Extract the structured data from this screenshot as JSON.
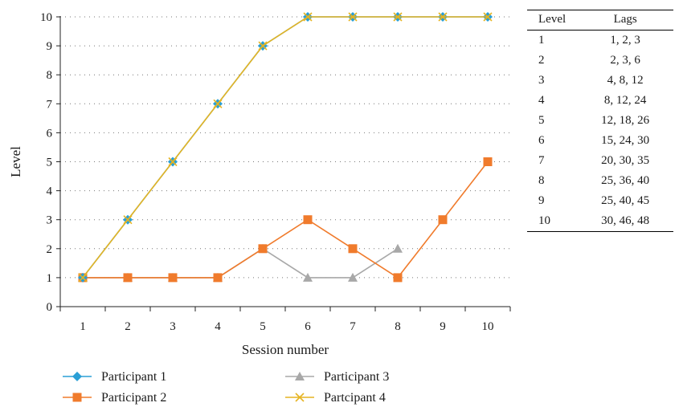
{
  "chart_data": {
    "type": "line",
    "xlabel": "Session number",
    "ylabel": "Level",
    "x": [
      1,
      2,
      3,
      4,
      5,
      6,
      7,
      8,
      9,
      10
    ],
    "xlim": [
      0.5,
      10.5
    ],
    "ylim": [
      0,
      10
    ],
    "yticks": [
      0,
      1,
      2,
      3,
      4,
      5,
      6,
      7,
      8,
      9,
      10
    ],
    "grid": "horizontal dotted",
    "legend_position": "bottom",
    "series": [
      {
        "name": "Participant 1",
        "color": "#2a9fd6",
        "marker": "diamond",
        "values": [
          1,
          3,
          5,
          7,
          9,
          10,
          10,
          10,
          10,
          10
        ]
      },
      {
        "name": "Participant 2",
        "color": "#f07b2c",
        "marker": "square",
        "values": [
          1,
          1,
          1,
          1,
          2,
          3,
          2,
          1,
          3,
          5
        ]
      },
      {
        "name": "Participant 3",
        "color": "#a8a8a8",
        "marker": "triangle",
        "values": [
          1,
          1,
          1,
          1,
          2,
          1,
          1,
          2,
          null,
          null
        ]
      },
      {
        "name": "Partcipant 4",
        "color": "#e6b422",
        "marker": "x",
        "values": [
          1,
          3,
          5,
          7,
          9,
          10,
          10,
          10,
          10,
          10
        ]
      }
    ]
  },
  "lag_table": {
    "headers": [
      "Level",
      "Lags"
    ],
    "rows": [
      [
        "1",
        "1, 2, 3"
      ],
      [
        "2",
        "2, 3, 6"
      ],
      [
        "3",
        "4, 8, 12"
      ],
      [
        "4",
        "8, 12, 24"
      ],
      [
        "5",
        "12, 18, 26"
      ],
      [
        "6",
        "15, 24, 30"
      ],
      [
        "7",
        "20, 30, 35"
      ],
      [
        "8",
        "25, 36, 40"
      ],
      [
        "9",
        "25, 40, 45"
      ],
      [
        "10",
        "30, 46, 48"
      ]
    ]
  }
}
